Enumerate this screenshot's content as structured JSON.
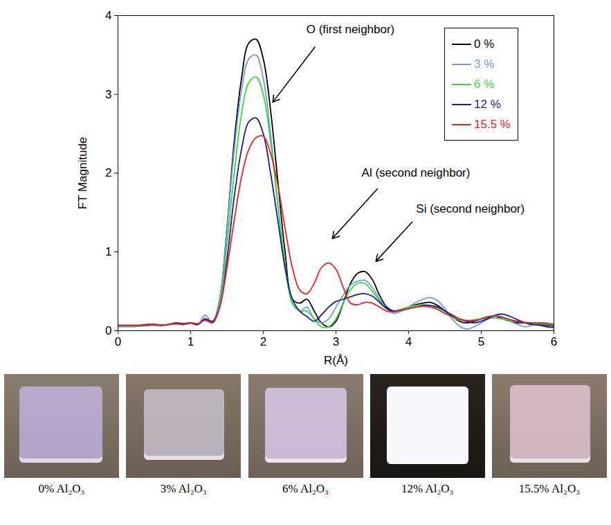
{
  "chart_data": {
    "type": "line",
    "x_label": "R(Å)",
    "y_label": "FT Magnitude",
    "xlim": [
      0,
      6
    ],
    "xticks": [
      0,
      1,
      2,
      3,
      4,
      5,
      6
    ],
    "ylim": [
      0,
      4
    ],
    "yticks": [
      0,
      1,
      2,
      3,
      4
    ],
    "grid": false,
    "legend": "top-right",
    "annotations": [
      {
        "text": "O (first neighbor)"
      },
      {
        "text": "Al (second neighbor)"
      },
      {
        "text": "Si (second neighbor)"
      }
    ],
    "x": [
      0,
      0.1,
      0.2,
      0.3,
      0.4,
      0.5,
      0.6,
      0.7,
      0.8,
      0.9,
      1.0,
      1.1,
      1.2,
      1.3,
      1.4,
      1.5,
      1.6,
      1.7,
      1.8,
      1.9,
      2.0,
      2.1,
      2.2,
      2.3,
      2.4,
      2.5,
      2.6,
      2.7,
      2.8,
      2.9,
      3.0,
      3.1,
      3.2,
      3.3,
      3.4,
      3.5,
      3.6,
      3.7,
      3.8,
      3.9,
      4.0,
      4.1,
      4.2,
      4.3,
      4.4,
      4.5,
      4.6,
      4.7,
      4.8,
      4.9,
      5.0,
      5.1,
      5.2,
      5.3,
      5.4,
      5.5,
      5.6,
      5.7,
      5.8,
      5.9,
      6.0
    ],
    "series": [
      {
        "name": "0 %",
        "color": "#000000",
        "line_style": "solid",
        "values": [
          0.06,
          0.06,
          0.06,
          0.06,
          0.07,
          0.08,
          0.07,
          0.08,
          0.09,
          0.08,
          0.1,
          0.08,
          0.15,
          0.1,
          0.4,
          1.3,
          2.4,
          3.2,
          3.65,
          3.7,
          3.45,
          2.8,
          1.9,
          1.0,
          0.4,
          0.35,
          0.4,
          0.25,
          0.1,
          0.05,
          0.12,
          0.35,
          0.6,
          0.73,
          0.75,
          0.65,
          0.45,
          0.3,
          0.25,
          0.27,
          0.3,
          0.33,
          0.35,
          0.36,
          0.32,
          0.25,
          0.18,
          0.12,
          0.1,
          0.12,
          0.15,
          0.18,
          0.18,
          0.15,
          0.12,
          0.1,
          0.1,
          0.08,
          0.08,
          0.07,
          0.06
        ]
      },
      {
        "name": "3 %",
        "color": "#6f9be8",
        "line_style": "solid",
        "values": [
          0.05,
          0.05,
          0.05,
          0.06,
          0.06,
          0.07,
          0.06,
          0.08,
          0.1,
          0.08,
          0.09,
          0.08,
          0.2,
          0.1,
          0.4,
          1.3,
          2.3,
          3.05,
          3.45,
          3.5,
          3.2,
          2.5,
          1.6,
          0.8,
          0.35,
          0.25,
          0.3,
          0.15,
          0.1,
          0.15,
          0.3,
          0.45,
          0.58,
          0.63,
          0.64,
          0.55,
          0.4,
          0.28,
          0.22,
          0.25,
          0.3,
          0.36,
          0.4,
          0.42,
          0.38,
          0.28,
          0.15,
          0.06,
          0.02,
          0.05,
          0.1,
          0.15,
          0.18,
          0.17,
          0.12,
          0.08,
          0.05,
          0.07,
          0.1,
          0.1,
          0.08
        ]
      },
      {
        "name": "6 %",
        "color": "#33dd33",
        "line_style": "solid",
        "values": [
          0.06,
          0.06,
          0.06,
          0.06,
          0.07,
          0.07,
          0.07,
          0.08,
          0.09,
          0.08,
          0.1,
          0.08,
          0.14,
          0.1,
          0.35,
          1.1,
          2.0,
          2.75,
          3.15,
          3.22,
          3.0,
          2.4,
          1.6,
          0.85,
          0.35,
          0.25,
          0.25,
          0.15,
          0.05,
          0.05,
          0.15,
          0.35,
          0.52,
          0.6,
          0.6,
          0.5,
          0.38,
          0.28,
          0.25,
          0.27,
          0.3,
          0.32,
          0.33,
          0.32,
          0.28,
          0.22,
          0.17,
          0.14,
          0.13,
          0.14,
          0.15,
          0.16,
          0.16,
          0.15,
          0.13,
          0.12,
          0.11,
          0.1,
          0.09,
          0.08,
          0.07
        ]
      },
      {
        "name": "12 %",
        "color": "#1a1aa0",
        "line_style": "solid",
        "values": [
          0.07,
          0.07,
          0.07,
          0.07,
          0.08,
          0.08,
          0.07,
          0.08,
          0.1,
          0.09,
          0.1,
          0.08,
          0.15,
          0.12,
          0.3,
          0.9,
          1.7,
          2.3,
          2.65,
          2.7,
          2.5,
          2.0,
          1.4,
          0.8,
          0.4,
          0.25,
          0.18,
          0.12,
          0.2,
          0.3,
          0.37,
          0.4,
          0.43,
          0.46,
          0.47,
          0.44,
          0.36,
          0.28,
          0.25,
          0.26,
          0.28,
          0.3,
          0.32,
          0.32,
          0.3,
          0.25,
          0.2,
          0.15,
          0.12,
          0.1,
          0.12,
          0.16,
          0.2,
          0.21,
          0.18,
          0.14,
          0.1,
          0.08,
          0.07,
          0.05,
          0.04
        ]
      },
      {
        "name": "15.5 %",
        "color": "#ee2020",
        "line_style": "solid",
        "values": [
          0.07,
          0.07,
          0.07,
          0.07,
          0.07,
          0.08,
          0.07,
          0.08,
          0.09,
          0.08,
          0.1,
          0.09,
          0.13,
          0.1,
          0.3,
          0.8,
          1.4,
          1.95,
          2.3,
          2.45,
          2.47,
          2.25,
          1.85,
          1.3,
          0.8,
          0.52,
          0.47,
          0.6,
          0.8,
          0.86,
          0.78,
          0.55,
          0.35,
          0.33,
          0.36,
          0.35,
          0.3,
          0.25,
          0.24,
          0.26,
          0.28,
          0.3,
          0.31,
          0.3,
          0.27,
          0.22,
          0.18,
          0.15,
          0.13,
          0.13,
          0.15,
          0.18,
          0.19,
          0.17,
          0.14,
          0.12,
          0.1,
          0.1,
          0.1,
          0.09,
          0.08
        ]
      }
    ]
  },
  "photos": {
    "captions": [
      "0% Al₂O₃",
      "3% Al₂O₃",
      "6% Al₂O₃",
      "12% Al₂O₃",
      "15.5% Al₂O₃"
    ]
  }
}
